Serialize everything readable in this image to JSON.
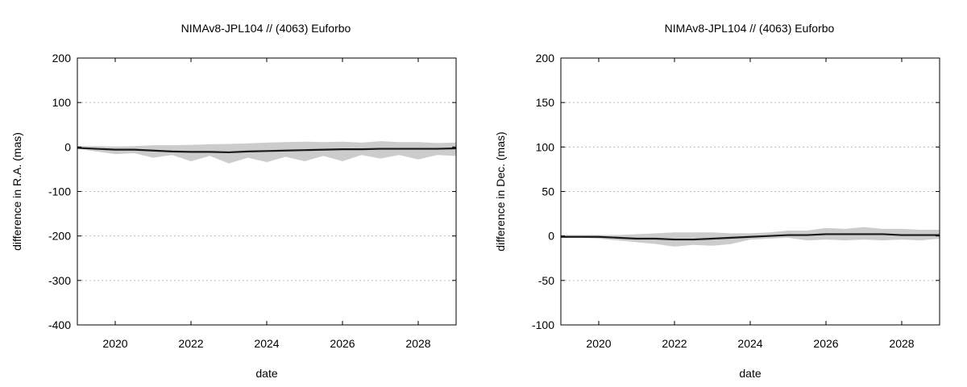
{
  "chart_data": [
    {
      "type": "line",
      "title": "NIMAv8-JPL104 // (4063) Euforbo",
      "xlabel": "date",
      "ylabel": "difference in R.A. (mas)",
      "xlim": [
        2019.0,
        2029.0
      ],
      "ylim": [
        -400,
        200
      ],
      "x_ticks": [
        2020,
        2022,
        2024,
        2026,
        2028
      ],
      "y_ticks": [
        -400,
        -300,
        -200,
        -100,
        0,
        100,
        200
      ],
      "grid": "horizontal dotted",
      "colors": {
        "line": "#1a1a1a",
        "band": "#cccccc"
      },
      "series": [
        {
          "x": [
            2019.0,
            2019.5,
            2020.0,
            2020.5,
            2021.0,
            2021.5,
            2022.0,
            2022.5,
            2023.0,
            2023.5,
            2024.0,
            2024.5,
            2025.0,
            2025.5,
            2026.0,
            2026.5,
            2027.0,
            2027.5,
            2028.0,
            2028.5,
            2029.0
          ],
          "y": [
            -2,
            -4,
            -6,
            -6,
            -8,
            -10,
            -11,
            -11,
            -12,
            -10,
            -9,
            -8,
            -7,
            -6,
            -5,
            -5,
            -4,
            -4,
            -4,
            -4,
            -3
          ],
          "y_upper": [
            2,
            2,
            1,
            2,
            4,
            4,
            5,
            6,
            7,
            8,
            10,
            11,
            12,
            11,
            12,
            10,
            13,
            11,
            11,
            9,
            10
          ],
          "y_lower": [
            -4,
            -10,
            -16,
            -14,
            -24,
            -18,
            -32,
            -20,
            -37,
            -24,
            -34,
            -22,
            -32,
            -20,
            -32,
            -18,
            -26,
            -18,
            -28,
            -18,
            -20
          ]
        }
      ]
    },
    {
      "type": "line",
      "title": "NIMAv8-JPL104 // (4063) Euforbo",
      "xlabel": "date",
      "ylabel": "difference in Dec. (mas)",
      "xlim": [
        2019.0,
        2029.0
      ],
      "ylim": [
        -100,
        200
      ],
      "x_ticks": [
        2020,
        2022,
        2024,
        2026,
        2028
      ],
      "y_ticks": [
        -100,
        -50,
        0,
        50,
        100,
        150,
        200
      ],
      "grid": "horizontal dotted",
      "colors": {
        "line": "#1a1a1a",
        "band": "#cccccc"
      },
      "series": [
        {
          "x": [
            2019.0,
            2019.5,
            2020.0,
            2020.5,
            2021.0,
            2021.5,
            2022.0,
            2022.5,
            2023.0,
            2023.5,
            2024.0,
            2024.5,
            2025.0,
            2025.5,
            2026.0,
            2026.5,
            2027.0,
            2027.5,
            2028.0,
            2028.5,
            2029.0
          ],
          "y": [
            -1,
            -1,
            -1,
            -2,
            -3,
            -3,
            -4,
            -4,
            -3,
            -2,
            -1,
            0,
            1,
            1,
            2,
            2,
            2,
            2,
            1,
            1,
            1
          ],
          "y_upper": [
            1,
            1,
            1,
            1,
            2,
            3,
            4,
            4,
            4,
            3,
            3,
            4,
            6,
            6,
            9,
            8,
            10,
            8,
            8,
            7,
            7
          ],
          "y_lower": [
            -2,
            -2,
            -3,
            -5,
            -7,
            -9,
            -12,
            -10,
            -11,
            -9,
            -4,
            -3,
            -2,
            -5,
            -4,
            -5,
            -4,
            -5,
            -4,
            -5,
            -3
          ]
        }
      ]
    }
  ]
}
